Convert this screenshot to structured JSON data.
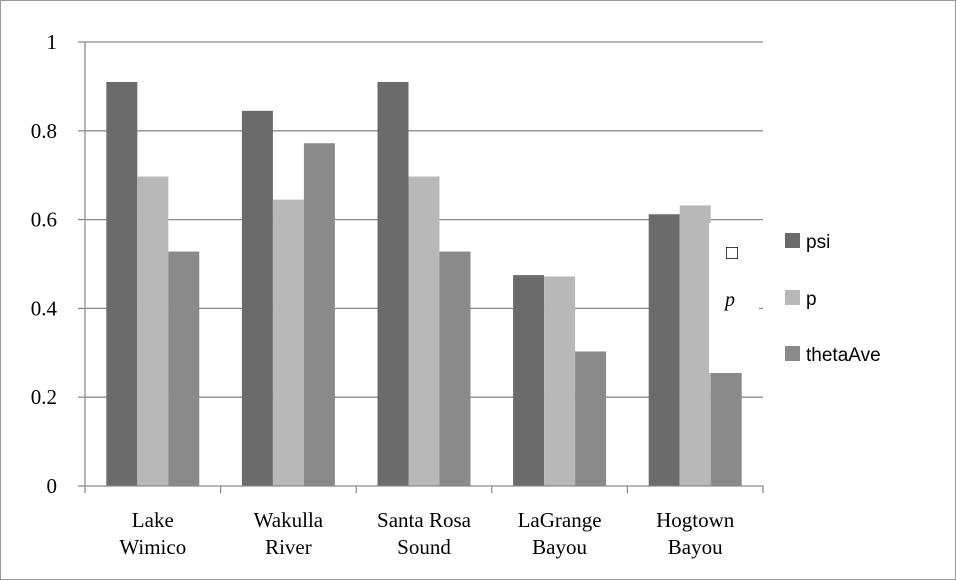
{
  "chart_data": {
    "type": "bar",
    "categories": [
      [
        "Lake",
        "Wimico"
      ],
      [
        "Wakulla",
        "River"
      ],
      [
        "Santa Rosa",
        "Sound"
      ],
      [
        "LaGrange",
        "Bayou"
      ],
      [
        "Hogtown",
        "Bayou"
      ]
    ],
    "series": [
      {
        "name": "psi",
        "color": "#6b6b6b",
        "values": [
          0.91,
          0.845,
          0.91,
          0.475,
          0.612
        ]
      },
      {
        "name": "p",
        "color": "#b8b8b8",
        "values": [
          0.697,
          0.645,
          0.697,
          0.472,
          0.632
        ]
      },
      {
        "name": "thetaAve",
        "color": "#8a8a8a",
        "values": [
          0.528,
          0.772,
          0.528,
          0.303,
          0.255
        ]
      }
    ],
    "ylim": [
      0,
      1
    ],
    "yticks": [
      "0",
      "0.2",
      "0.4",
      "0.6",
      "0.8",
      "1"
    ],
    "grid": true,
    "legend": "right",
    "annotation": {
      "symbol": "□",
      "text": "p"
    }
  }
}
